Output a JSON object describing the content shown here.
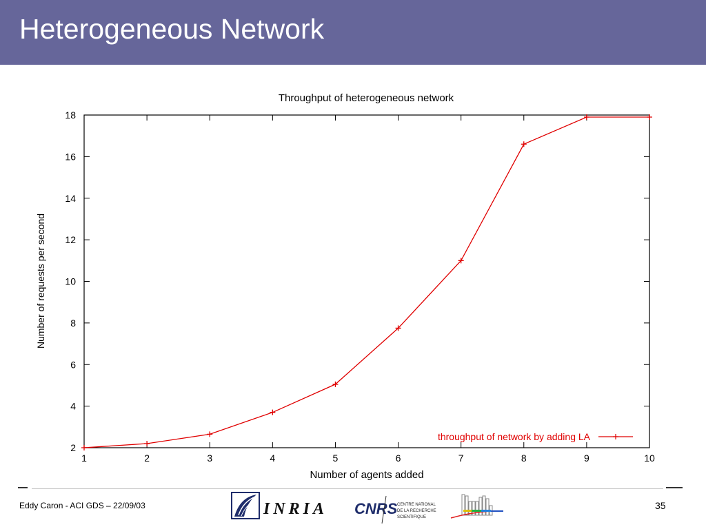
{
  "slide": {
    "title": "Heterogeneous Network",
    "footer": "Eddy Caron - ACI GDS – 22/09/03",
    "page_number": "35"
  },
  "logos": {
    "inria": "INRIA",
    "cnrs": "CNRS",
    "cnrs_caption": [
      "CENTRE NATIONAL",
      "DE LA RECHERCHE",
      "SCIENTIFIQUE"
    ]
  },
  "colors": {
    "header": "#66669a",
    "series": "#e00000",
    "axes": "#000000"
  },
  "chart_data": {
    "type": "line",
    "title": "Throughput of heterogeneous network",
    "xlabel": "Number of agents added",
    "ylabel": "Number of requests per second",
    "xlim": [
      1,
      10
    ],
    "ylim": [
      2,
      18
    ],
    "xticks": [
      1,
      2,
      3,
      4,
      5,
      6,
      7,
      8,
      9,
      10
    ],
    "yticks": [
      2,
      4,
      6,
      8,
      10,
      12,
      14,
      16,
      18
    ],
    "grid": false,
    "legend_position": "bottom-right",
    "series": [
      {
        "name": "throughput of network by adding LA",
        "marker": "plus",
        "x": [
          1,
          2,
          3,
          4,
          5,
          6,
          7,
          8,
          9,
          10
        ],
        "y": [
          2.0,
          2.2,
          2.65,
          3.7,
          5.05,
          7.75,
          11.0,
          16.6,
          17.9,
          17.9
        ]
      }
    ]
  }
}
